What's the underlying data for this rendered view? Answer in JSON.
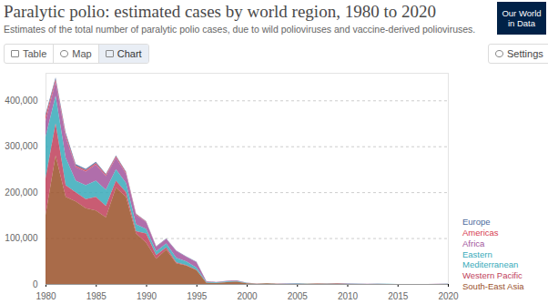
{
  "header": {
    "logo": "Our World in Data",
    "tabs": [
      "Table",
      "Map",
      "Chart"
    ],
    "active_tab": "Chart",
    "settings": "Settings"
  },
  "chart_data": {
    "type": "area",
    "title": "Paralytic polio: estimated cases by world region, 1980 to 2020",
    "subtitle": "Estimates of the total number of paralytic polio cases, due to wild polioviruses and vaccine-derived polioviruses.",
    "stacked": true,
    "grid": true,
    "legend": "right",
    "x": [
      1980,
      1981,
      1982,
      1983,
      1984,
      1985,
      1986,
      1987,
      1988,
      1989,
      1990,
      1991,
      1992,
      1993,
      1994,
      1995,
      1996,
      1997,
      1998,
      1999,
      2000,
      2001,
      2002,
      2003,
      2004,
      2005,
      2006,
      2007,
      2008,
      2009,
      2010,
      2011,
      2012,
      2013,
      2014,
      2015,
      2016,
      2017,
      2018,
      2019,
      2020
    ],
    "xlim": [
      1980,
      2020
    ],
    "xticks": [
      1980,
      1985,
      1990,
      1995,
      2000,
      2005,
      2010,
      2015,
      2020
    ],
    "ylim": [
      0,
      460000
    ],
    "yticks": [
      0,
      {
        "value": 100000,
        "label": "100,000"
      },
      {
        "value": 200000,
        "label": "200,000"
      },
      {
        "value": 300000,
        "label": "300,000"
      },
      {
        "value": 400000,
        "label": "400,000"
      }
    ],
    "series": [
      {
        "name": "Europe",
        "color": "#4c6a9c",
        "values": [
          5000,
          5000,
          5000,
          3000,
          3000,
          3000,
          2000,
          2000,
          2000,
          1000,
          1000,
          1000,
          1000,
          1000,
          1000,
          1000,
          200,
          100,
          50,
          20,
          10,
          5,
          0,
          0,
          0,
          0,
          0,
          0,
          0,
          0,
          460,
          0,
          0,
          0,
          0,
          0,
          0,
          0,
          0,
          0,
          0
        ]
      },
      {
        "name": "Americas",
        "color": "#d73c50",
        "values": [
          10000,
          5000,
          5000,
          3000,
          3000,
          3000,
          3000,
          3000,
          3000,
          2000,
          1000,
          500,
          100,
          50,
          20,
          10,
          5,
          5,
          5,
          5,
          10,
          5,
          0,
          0,
          0,
          0,
          0,
          0,
          0,
          0,
          0,
          0,
          0,
          0,
          0,
          0,
          0,
          0,
          0,
          0,
          0
        ]
      },
      {
        "name": "Africa",
        "color": "#a2559c",
        "values": [
          35000,
          30000,
          45000,
          30000,
          30000,
          35000,
          30000,
          25000,
          20000,
          20000,
          15000,
          10000,
          10000,
          15000,
          10000,
          12000,
          1500,
          1200,
          1500,
          1500,
          800,
          200,
          300,
          500,
          1000,
          1000,
          300,
          400,
          800,
          1000,
          900,
          500,
          150,
          400,
          40,
          30,
          10,
          0,
          50,
          300,
          700
        ]
      },
      {
        "name": "Eastern Mediterranean",
        "color": "#38aaba",
        "values": [
          90000,
          60000,
          60000,
          25000,
          30000,
          35000,
          35000,
          25000,
          20000,
          15000,
          10000,
          8000,
          8000,
          10000,
          8000,
          5000,
          1500,
          1200,
          1500,
          1500,
          800,
          400,
          300,
          250,
          300,
          800,
          200,
          100,
          250,
          200,
          250,
          400,
          100,
          500,
          350,
          60,
          40,
          80,
          60,
          200,
          500
        ]
      },
      {
        "name": "Western Pacific",
        "color": "#c0405a",
        "values": [
          80000,
          70000,
          25000,
          20000,
          20000,
          30000,
          25000,
          15000,
          10000,
          5000,
          20000,
          8000,
          5000,
          2000,
          1000,
          500,
          100,
          50,
          20,
          10,
          5,
          3,
          2,
          0,
          0,
          0,
          0,
          0,
          0,
          0,
          0,
          20,
          0,
          0,
          0,
          0,
          0,
          0,
          0,
          0,
          0
        ]
      },
      {
        "name": "South-East Asia",
        "color": "#9a5129",
        "values": [
          150000,
          280000,
          190000,
          180000,
          165000,
          160000,
          145000,
          210000,
          190000,
          110000,
          90000,
          55000,
          75000,
          45000,
          40000,
          30000,
          2500,
          2000,
          4000,
          5000,
          1500,
          300,
          1600,
          250,
          150,
          100,
          700,
          900,
          600,
          800,
          100,
          5,
          0,
          0,
          0,
          0,
          0,
          0,
          0,
          0,
          0
        ]
      }
    ]
  }
}
